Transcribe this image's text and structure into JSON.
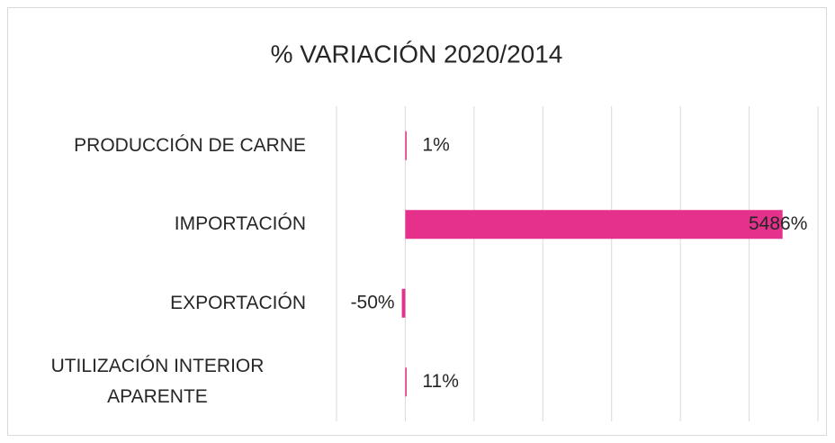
{
  "chart_data": {
    "type": "bar",
    "orientation": "horizontal",
    "title": "% VARIACIÓN 2020/2014",
    "categories": [
      "PRODUCCIÓN DE CARNE",
      "IMPORTACIÓN",
      "EXPORTACIÓN",
      "UTILIZACIÓN INTERIOR APARENTE"
    ],
    "values": [
      1,
      5486,
      -50,
      11
    ],
    "value_labels": [
      "1%",
      "5486%",
      "-50%",
      "11%"
    ],
    "color": "#e5308c",
    "xlim": [
      -1000,
      6000
    ],
    "xticks": [
      -1000,
      0,
      1000,
      2000,
      3000,
      4000,
      5000,
      6000
    ],
    "grid": true
  }
}
